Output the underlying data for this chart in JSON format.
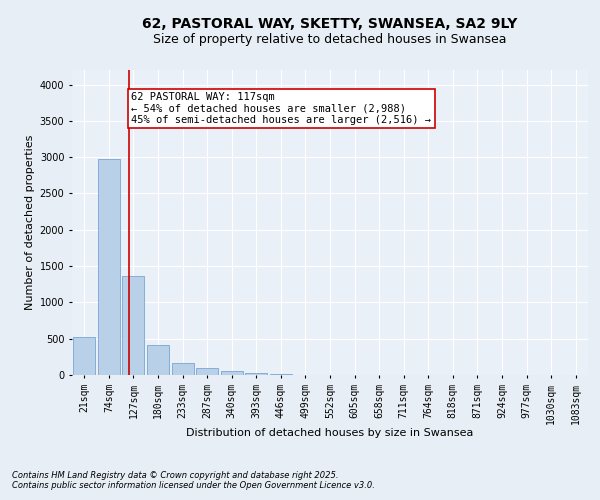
{
  "title_line1": "62, PASTORAL WAY, SKETTY, SWANSEA, SA2 9LY",
  "title_line2": "Size of property relative to detached houses in Swansea",
  "xlabel": "Distribution of detached houses by size in Swansea",
  "ylabel": "Number of detached properties",
  "bins": [
    "21sqm",
    "74sqm",
    "127sqm",
    "180sqm",
    "233sqm",
    "287sqm",
    "340sqm",
    "393sqm",
    "446sqm",
    "499sqm",
    "552sqm",
    "605sqm",
    "658sqm",
    "711sqm",
    "764sqm",
    "818sqm",
    "871sqm",
    "924sqm",
    "977sqm",
    "1030sqm",
    "1083sqm"
  ],
  "values": [
    530,
    2980,
    1360,
    420,
    170,
    90,
    55,
    30,
    15,
    5,
    3,
    2,
    1,
    1,
    0,
    0,
    0,
    0,
    0,
    0,
    0
  ],
  "bar_color": "#b8d0e8",
  "bar_edge_color": "#6699cc",
  "vline_x_index": 1.82,
  "vline_color": "#cc0000",
  "annotation_text": "62 PASTORAL WAY: 117sqm\n← 54% of detached houses are smaller (2,988)\n45% of semi-detached houses are larger (2,516) →",
  "annotation_box_color": "#ffffff",
  "annotation_box_edge": "#cc0000",
  "ylim": [
    0,
    4200
  ],
  "yticks": [
    0,
    500,
    1000,
    1500,
    2000,
    2500,
    3000,
    3500,
    4000
  ],
  "footer1": "Contains HM Land Registry data © Crown copyright and database right 2025.",
  "footer2": "Contains public sector information licensed under the Open Government Licence v3.0.",
  "bg_color": "#e8eef5",
  "plot_bg_color": "#eaf0f8",
  "grid_color": "#ffffff",
  "title_fontsize": 10,
  "subtitle_fontsize": 9,
  "axis_label_fontsize": 8,
  "tick_fontsize": 7,
  "annotation_fontsize": 7.5,
  "footer_fontsize": 6
}
